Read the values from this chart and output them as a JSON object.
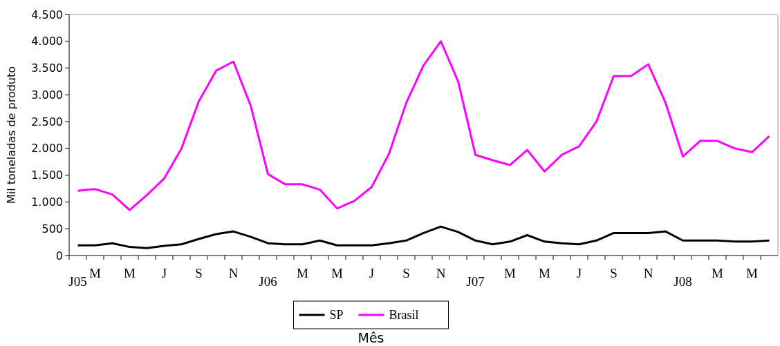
{
  "chart_data": {
    "type": "line",
    "xlabel": "Mês",
    "ylabel": "Mil toneladas de produto",
    "categories": [
      "J05",
      "M",
      null,
      "M",
      null,
      "J",
      null,
      "S",
      null,
      "N",
      null,
      "J06",
      null,
      "M",
      null,
      "M",
      null,
      "J",
      null,
      "S",
      null,
      "N",
      null,
      "J07",
      null,
      "M",
      null,
      "M",
      null,
      "J",
      null,
      "S",
      null,
      "N",
      null,
      "J08",
      null,
      "M",
      null,
      "M",
      null
    ],
    "series": [
      {
        "name": "SP",
        "color": "#000000",
        "values": [
          190,
          190,
          230,
          160,
          140,
          180,
          210,
          310,
          400,
          450,
          350,
          230,
          210,
          210,
          280,
          190,
          190,
          190,
          230,
          280,
          420,
          540,
          440,
          280,
          210,
          260,
          380,
          260,
          230,
          210,
          280,
          420,
          420,
          420,
          450,
          280,
          280,
          280,
          260,
          260,
          280
        ]
      },
      {
        "name": "Brasil",
        "color": "#ff00ff",
        "values": [
          1210,
          1240,
          1140,
          850,
          1130,
          1440,
          2000,
          2880,
          3450,
          3620,
          2800,
          1520,
          1330,
          1330,
          1230,
          880,
          1020,
          1280,
          1900,
          2850,
          3550,
          4000,
          3250,
          1880,
          1780,
          1690,
          1970,
          1570,
          1880,
          2040,
          2500,
          3350,
          3350,
          3570,
          2850,
          1850,
          2140,
          2140,
          2000,
          1930,
          2230
        ]
      }
    ],
    "ylim": [
      0,
      4500
    ],
    "yticks": [
      0,
      500,
      {
        "value": 1000,
        "label": "1.000"
      },
      {
        "value": 1500,
        "label": "1.500"
      },
      {
        "value": 2000,
        "label": "2.000"
      },
      {
        "value": 2500,
        "label": "2.500"
      },
      {
        "value": 3000,
        "label": "3.000"
      },
      {
        "value": 3500,
        "label": "3.500"
      },
      {
        "value": 4000,
        "label": "4.000"
      },
      {
        "value": 4500,
        "label": "4.500"
      }
    ],
    "grid": false,
    "legend": "bottom",
    "marker": "none",
    "line_style": "solid"
  }
}
